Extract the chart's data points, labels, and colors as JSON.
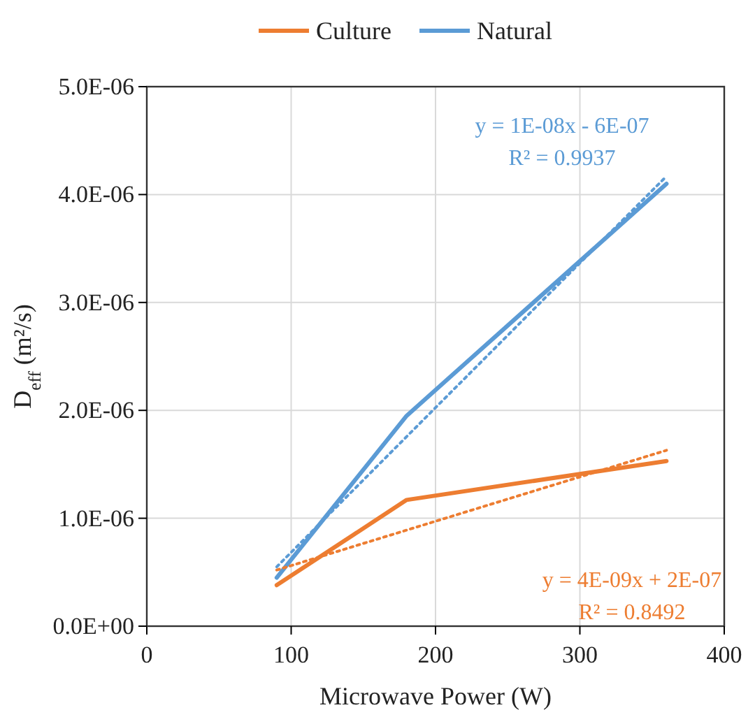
{
  "chart_data": {
    "type": "line",
    "xlabel": "Microwave Power (W)",
    "ylabel": "D$_{eff}$ (m²/s)",
    "xlim": [
      0,
      400
    ],
    "xticks": [
      0,
      100,
      200,
      300,
      400
    ],
    "ylim": [
      0,
      5e-06
    ],
    "yticks": [
      {
        "value": 0,
        "label": "0.0E+00"
      },
      {
        "value": 1e-06,
        "label": "1.0E-06"
      },
      {
        "value": 2e-06,
        "label": "2.0E-06"
      },
      {
        "value": 3e-06,
        "label": "3.0E-06"
      },
      {
        "value": 4e-06,
        "label": "4.0E-06"
      },
      {
        "value": 5e-06,
        "label": "5.0E-06"
      }
    ],
    "grid": true,
    "legend": "top",
    "series": [
      {
        "name": "Culture",
        "color": "#ed7d31",
        "x": [
          90,
          180,
          360
        ],
        "values": [
          3.8e-07,
          1.17e-06,
          1.53e-06
        ]
      },
      {
        "name": "Natural",
        "color": "#5b9bd5",
        "x": [
          90,
          180,
          360
        ],
        "values": [
          4.5e-07,
          1.95e-06,
          4.1e-06
        ]
      },
      {
        "color": "#ed7d31",
        "x": [
          90,
          360
        ],
        "values": [
          5.2e-07,
          1.63e-06
        ],
        "line_style": "dotted"
      },
      {
        "color": "#5b9bd5",
        "x": [
          90,
          360
        ],
        "values": [
          5.5e-07,
          4.17e-06
        ],
        "line_style": "dotted"
      }
    ],
    "annotations": [
      "y = 1E-08x - 6E-07",
      "R² = 0.9937",
      "y = 4E-09x + 2E-07",
      "R² = 0.8492"
    ]
  }
}
